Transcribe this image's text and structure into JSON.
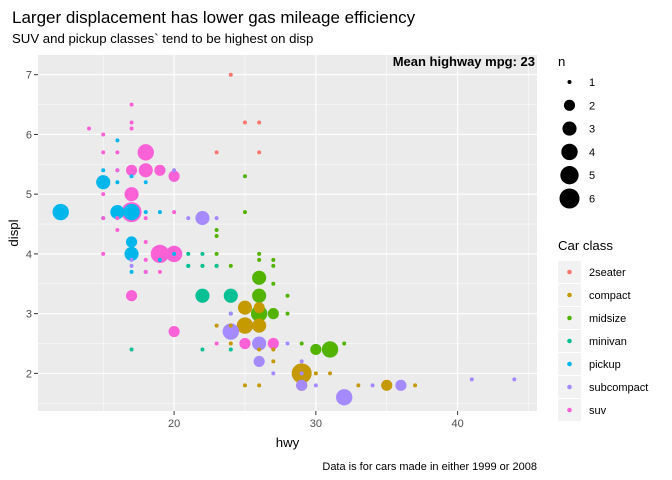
{
  "chart_data": {
    "type": "scatter",
    "title": "Larger displacement has lower gas mileage efficiency",
    "subtitle": "SUV and pickup classes` tend to be highest on disp",
    "caption": "Data is for cars made in either 1999 or 2008",
    "xlabel": "hwy",
    "ylabel": "displ",
    "xlim": [
      10.4,
      45.6
    ],
    "ylim": [
      1.37,
      7.33
    ],
    "x_ticks": [
      20,
      30,
      40
    ],
    "y_ticks": [
      2,
      3,
      4,
      5,
      6,
      7
    ],
    "grid": true,
    "annotation": "Mean highway mpg: 23",
    "size_legend": {
      "title": "n",
      "values": [
        1,
        2,
        3,
        4,
        5,
        6
      ]
    },
    "color_legend": {
      "title": "Car class",
      "placement": "right",
      "classes": [
        {
          "name": "2seater",
          "color": "#F8766D"
        },
        {
          "name": "compact",
          "color": "#C49A00"
        },
        {
          "name": "midsize",
          "color": "#53B400"
        },
        {
          "name": "minivan",
          "color": "#00C094"
        },
        {
          "name": "pickup",
          "color": "#00B6EB"
        },
        {
          "name": "subcompact",
          "color": "#A58AFF"
        },
        {
          "name": "suv",
          "color": "#FB61D7"
        }
      ]
    },
    "points": [
      {
        "x": 24,
        "y": 7.0,
        "n": 1,
        "class": "2seater"
      },
      {
        "x": 25,
        "y": 6.2,
        "n": 1,
        "class": "2seater"
      },
      {
        "x": 26,
        "y": 6.2,
        "n": 1,
        "class": "2seater"
      },
      {
        "x": 23,
        "y": 5.7,
        "n": 1,
        "class": "2seater"
      },
      {
        "x": 26,
        "y": 5.7,
        "n": 1,
        "class": "2seater"
      },
      {
        "x": 29,
        "y": 1.8,
        "n": 2,
        "class": "compact"
      },
      {
        "x": 29,
        "y": 2.0,
        "n": 6,
        "class": "compact"
      },
      {
        "x": 31,
        "y": 2.0,
        "n": 1,
        "class": "compact"
      },
      {
        "x": 30,
        "y": 2.0,
        "n": 1,
        "class": "compact"
      },
      {
        "x": 26,
        "y": 2.8,
        "n": 3,
        "class": "compact"
      },
      {
        "x": 25,
        "y": 2.8,
        "n": 4,
        "class": "compact"
      },
      {
        "x": 25,
        "y": 3.1,
        "n": 3,
        "class": "compact"
      },
      {
        "x": 26,
        "y": 3.1,
        "n": 2,
        "class": "compact"
      },
      {
        "x": 23,
        "y": 2.8,
        "n": 1,
        "class": "compact"
      },
      {
        "x": 24,
        "y": 2.8,
        "n": 1,
        "class": "compact"
      },
      {
        "x": 35,
        "y": 1.8,
        "n": 2,
        "class": "compact"
      },
      {
        "x": 37,
        "y": 1.8,
        "n": 1,
        "class": "compact"
      },
      {
        "x": 33,
        "y": 1.8,
        "n": 1,
        "class": "compact"
      },
      {
        "x": 27,
        "y": 2.4,
        "n": 1,
        "class": "compact"
      },
      {
        "x": 27,
        "y": 2.2,
        "n": 1,
        "class": "compact"
      },
      {
        "x": 26,
        "y": 2.4,
        "n": 1,
        "class": "compact"
      },
      {
        "x": 25,
        "y": 1.8,
        "n": 1,
        "class": "compact"
      },
      {
        "x": 26,
        "y": 1.8,
        "n": 1,
        "class": "compact"
      },
      {
        "x": 24,
        "y": 2.5,
        "n": 1,
        "class": "compact"
      },
      {
        "x": 26,
        "y": 3.6,
        "n": 3,
        "class": "midsize"
      },
      {
        "x": 26,
        "y": 3.3,
        "n": 3,
        "class": "midsize"
      },
      {
        "x": 26,
        "y": 3.0,
        "n": 4,
        "class": "midsize"
      },
      {
        "x": 27,
        "y": 3.0,
        "n": 2,
        "class": "midsize"
      },
      {
        "x": 31,
        "y": 2.4,
        "n": 4,
        "class": "midsize"
      },
      {
        "x": 30,
        "y": 2.4,
        "n": 2,
        "class": "midsize"
      },
      {
        "x": 32,
        "y": 2.5,
        "n": 1,
        "class": "midsize"
      },
      {
        "x": 28,
        "y": 3.0,
        "n": 1,
        "class": "midsize"
      },
      {
        "x": 28,
        "y": 3.3,
        "n": 1,
        "class": "midsize"
      },
      {
        "x": 27,
        "y": 3.5,
        "n": 1,
        "class": "midsize"
      },
      {
        "x": 25,
        "y": 5.3,
        "n": 1,
        "class": "midsize"
      },
      {
        "x": 25,
        "y": 4.7,
        "n": 1,
        "class": "midsize"
      },
      {
        "x": 24,
        "y": 3.8,
        "n": 1,
        "class": "midsize"
      },
      {
        "x": 26,
        "y": 4.0,
        "n": 1,
        "class": "midsize"
      },
      {
        "x": 27,
        "y": 3.9,
        "n": 1,
        "class": "midsize"
      },
      {
        "x": 29,
        "y": 2.5,
        "n": 1,
        "class": "midsize"
      },
      {
        "x": 27,
        "y": 3.8,
        "n": 1,
        "class": "midsize"
      },
      {
        "x": 26,
        "y": 3.9,
        "n": 1,
        "class": "midsize"
      },
      {
        "x": 23,
        "y": 4.0,
        "n": 1,
        "class": "midsize"
      },
      {
        "x": 23,
        "y": 3.8,
        "n": 1,
        "class": "midsize"
      },
      {
        "x": 23,
        "y": 4.3,
        "n": 1,
        "class": "midsize"
      },
      {
        "x": 23,
        "y": 4.4,
        "n": 1,
        "class": "midsize"
      },
      {
        "x": 22,
        "y": 3.8,
        "n": 1,
        "class": "midsize"
      },
      {
        "x": 24,
        "y": 3.3,
        "n": 3,
        "class": "minivan"
      },
      {
        "x": 22,
        "y": 3.3,
        "n": 3,
        "class": "minivan"
      },
      {
        "x": 22,
        "y": 3.8,
        "n": 1,
        "class": "minivan"
      },
      {
        "x": 21,
        "y": 3.8,
        "n": 1,
        "class": "minivan"
      },
      {
        "x": 21,
        "y": 4.0,
        "n": 1,
        "class": "minivan"
      },
      {
        "x": 22,
        "y": 4.0,
        "n": 1,
        "class": "minivan"
      },
      {
        "x": 23,
        "y": 3.8,
        "n": 1,
        "class": "minivan"
      },
      {
        "x": 24,
        "y": 3.0,
        "n": 1,
        "class": "minivan"
      },
      {
        "x": 21,
        "y": 3.8,
        "n": 1,
        "class": "minivan"
      },
      {
        "x": 17,
        "y": 2.4,
        "n": 1,
        "class": "minivan"
      },
      {
        "x": 24,
        "y": 2.4,
        "n": 1,
        "class": "minivan"
      },
      {
        "x": 22,
        "y": 2.4,
        "n": 1,
        "class": "minivan"
      },
      {
        "x": 12,
        "y": 4.7,
        "n": 4,
        "class": "pickup"
      },
      {
        "x": 15,
        "y": 5.2,
        "n": 3,
        "class": "pickup"
      },
      {
        "x": 17,
        "y": 4.7,
        "n": 4,
        "class": "pickup"
      },
      {
        "x": 16,
        "y": 4.7,
        "n": 3,
        "class": "pickup"
      },
      {
        "x": 17,
        "y": 4.2,
        "n": 2,
        "class": "pickup"
      },
      {
        "x": 17,
        "y": 4.0,
        "n": 3,
        "class": "pickup"
      },
      {
        "x": 17,
        "y": 3.7,
        "n": 1,
        "class": "pickup"
      },
      {
        "x": 18,
        "y": 3.7,
        "n": 1,
        "class": "pickup"
      },
      {
        "x": 16,
        "y": 5.2,
        "n": 1,
        "class": "pickup"
      },
      {
        "x": 15,
        "y": 5.4,
        "n": 1,
        "class": "pickup"
      },
      {
        "x": 16,
        "y": 5.4,
        "n": 1,
        "class": "pickup"
      },
      {
        "x": 19,
        "y": 4.7,
        "n": 1,
        "class": "pickup"
      },
      {
        "x": 18,
        "y": 4.7,
        "n": 1,
        "class": "pickup"
      },
      {
        "x": 20,
        "y": 4.0,
        "n": 1,
        "class": "pickup"
      },
      {
        "x": 19,
        "y": 3.9,
        "n": 1,
        "class": "pickup"
      },
      {
        "x": 18,
        "y": 5.2,
        "n": 1,
        "class": "pickup"
      },
      {
        "x": 17,
        "y": 5.3,
        "n": 1,
        "class": "pickup"
      },
      {
        "x": 16,
        "y": 5.9,
        "n": 1,
        "class": "pickup"
      },
      {
        "x": 15,
        "y": 4.6,
        "n": 1,
        "class": "pickup"
      },
      {
        "x": 32,
        "y": 1.6,
        "n": 4,
        "class": "subcompact"
      },
      {
        "x": 36,
        "y": 1.8,
        "n": 2,
        "class": "subcompact"
      },
      {
        "x": 34,
        "y": 1.8,
        "n": 1,
        "class": "subcompact"
      },
      {
        "x": 41,
        "y": 1.9,
        "n": 1,
        "class": "subcompact"
      },
      {
        "x": 44,
        "y": 1.9,
        "n": 1,
        "class": "subcompact"
      },
      {
        "x": 29,
        "y": 1.8,
        "n": 2,
        "class": "subcompact"
      },
      {
        "x": 29,
        "y": 2.2,
        "n": 1,
        "class": "subcompact"
      },
      {
        "x": 28,
        "y": 2.5,
        "n": 1,
        "class": "subcompact"
      },
      {
        "x": 26,
        "y": 2.5,
        "n": 3,
        "class": "subcompact"
      },
      {
        "x": 26,
        "y": 2.2,
        "n": 2,
        "class": "subcompact"
      },
      {
        "x": 27,
        "y": 2.0,
        "n": 1,
        "class": "subcompact"
      },
      {
        "x": 24,
        "y": 2.7,
        "n": 4,
        "class": "subcompact"
      },
      {
        "x": 24,
        "y": 3.0,
        "n": 1,
        "class": "subcompact"
      },
      {
        "x": 22,
        "y": 4.6,
        "n": 3,
        "class": "subcompact"
      },
      {
        "x": 23,
        "y": 4.6,
        "n": 1,
        "class": "subcompact"
      },
      {
        "x": 21,
        "y": 4.6,
        "n": 1,
        "class": "subcompact"
      },
      {
        "x": 20,
        "y": 5.4,
        "n": 1,
        "class": "subcompact"
      },
      {
        "x": 17,
        "y": 3.9,
        "n": 1,
        "class": "subcompact"
      },
      {
        "x": 17,
        "y": 3.8,
        "n": 1,
        "class": "subcompact"
      },
      {
        "x": 29,
        "y": 2.0,
        "n": 1,
        "class": "subcompact"
      },
      {
        "x": 30,
        "y": 1.8,
        "n": 1,
        "class": "subcompact"
      },
      {
        "x": 17,
        "y": 4.7,
        "n": 6,
        "class": "suv"
      },
      {
        "x": 18,
        "y": 5.7,
        "n": 4,
        "class": "suv"
      },
      {
        "x": 17,
        "y": 5.0,
        "n": 3,
        "class": "suv"
      },
      {
        "x": 18,
        "y": 5.4,
        "n": 3,
        "class": "suv"
      },
      {
        "x": 19,
        "y": 4.0,
        "n": 5,
        "class": "suv"
      },
      {
        "x": 20,
        "y": 4.0,
        "n": 4,
        "class": "suv"
      },
      {
        "x": 17,
        "y": 5.4,
        "n": 2,
        "class": "suv"
      },
      {
        "x": 19,
        "y": 5.4,
        "n": 2,
        "class": "suv"
      },
      {
        "x": 20,
        "y": 5.3,
        "n": 2,
        "class": "suv"
      },
      {
        "x": 20,
        "y": 2.7,
        "n": 2,
        "class": "suv"
      },
      {
        "x": 17,
        "y": 3.3,
        "n": 2,
        "class": "suv"
      },
      {
        "x": 25,
        "y": 2.5,
        "n": 2,
        "class": "suv"
      },
      {
        "x": 27,
        "y": 2.5,
        "n": 2,
        "class": "suv"
      },
      {
        "x": 18,
        "y": 4.6,
        "n": 1,
        "class": "suv"
      },
      {
        "x": 17,
        "y": 6.5,
        "n": 1,
        "class": "suv"
      },
      {
        "x": 17,
        "y": 6.1,
        "n": 1,
        "class": "suv"
      },
      {
        "x": 14,
        "y": 6.1,
        "n": 1,
        "class": "suv"
      },
      {
        "x": 15,
        "y": 6.0,
        "n": 1,
        "class": "suv"
      },
      {
        "x": 15,
        "y": 5.7,
        "n": 1,
        "class": "suv"
      },
      {
        "x": 16,
        "y": 5.7,
        "n": 1,
        "class": "suv"
      },
      {
        "x": 16,
        "y": 5.4,
        "n": 1,
        "class": "suv"
      },
      {
        "x": 15,
        "y": 5.0,
        "n": 1,
        "class": "suv"
      },
      {
        "x": 15,
        "y": 4.6,
        "n": 1,
        "class": "suv"
      },
      {
        "x": 16,
        "y": 4.6,
        "n": 1,
        "class": "suv"
      },
      {
        "x": 15,
        "y": 4.0,
        "n": 1,
        "class": "suv"
      },
      {
        "x": 18,
        "y": 4.2,
        "n": 1,
        "class": "suv"
      },
      {
        "x": 18,
        "y": 3.9,
        "n": 1,
        "class": "suv"
      },
      {
        "x": 18,
        "y": 3.7,
        "n": 1,
        "class": "suv"
      },
      {
        "x": 19,
        "y": 3.7,
        "n": 1,
        "class": "suv"
      },
      {
        "x": 20,
        "y": 4.7,
        "n": 1,
        "class": "suv"
      },
      {
        "x": 16,
        "y": 4.4,
        "n": 1,
        "class": "suv"
      },
      {
        "x": 23,
        "y": 2.5,
        "n": 1,
        "class": "suv"
      },
      {
        "x": 17,
        "y": 6.2,
        "n": 1,
        "class": "suv"
      }
    ]
  }
}
